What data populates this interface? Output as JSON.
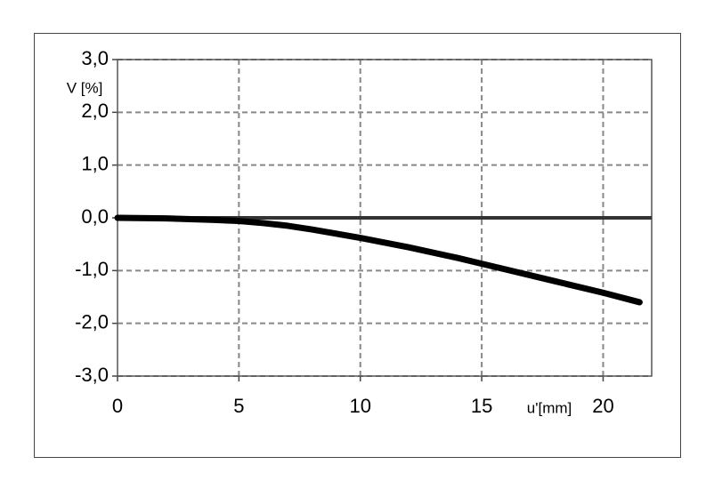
{
  "chart_data": {
    "type": "line",
    "y_label": "V [%]",
    "x_label": "u'[mm]",
    "x": [
      0,
      2,
      4,
      5,
      6,
      7,
      8,
      10,
      12,
      14,
      15,
      16,
      18,
      20,
      21.5
    ],
    "values": [
      0.0,
      -0.01,
      -0.04,
      -0.06,
      -0.1,
      -0.15,
      -0.22,
      -0.38,
      -0.56,
      -0.76,
      -0.87,
      -0.98,
      -1.2,
      -1.42,
      -1.6
    ],
    "color": "#000000",
    "xlim": [
      0,
      22
    ],
    "xticks": [
      0,
      5,
      10,
      15,
      20
    ],
    "ylim": [
      -3,
      3
    ],
    "yticks": [
      {
        "value": -3,
        "label": "-3,0"
      },
      {
        "value": -2,
        "label": "-2,0"
      },
      {
        "value": -1,
        "label": "-1,0"
      },
      {
        "value": 0,
        "label": "0,0"
      },
      {
        "value": 1,
        "label": "1,0"
      },
      {
        "value": 2,
        "label": "2,0"
      },
      {
        "value": 3,
        "label": "3,0"
      }
    ],
    "grid": true
  }
}
